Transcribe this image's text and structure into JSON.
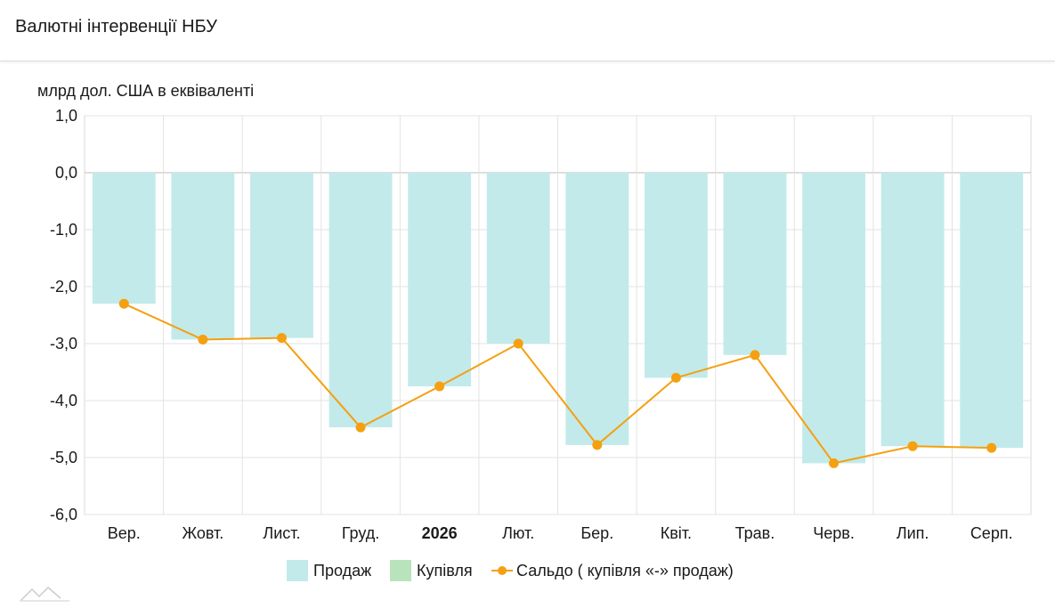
{
  "header": {
    "title": "Валютні інтервенції НБУ"
  },
  "chart_data": {
    "type": "bar",
    "unit_label": "млрд дол. США в еквіваленті",
    "categories": [
      "Вер.",
      "Жовт.",
      "Лист.",
      "Груд.",
      "2026",
      "Лют.",
      "Бер.",
      "Квіт.",
      "Трав.",
      "Черв.",
      "Лип.",
      "Серп."
    ],
    "bold_categories": [
      "2026"
    ],
    "ylim": [
      -6.0,
      1.0
    ],
    "yticks": [
      "1,0",
      "0,0",
      "-1,0",
      "-2,0",
      "-3,0",
      "-4,0",
      "-5,0",
      "-6,0"
    ],
    "ytick_values": [
      1,
      0,
      -1,
      -2,
      -3,
      -4,
      -5,
      -6
    ],
    "grid": true,
    "legend_position": "bottom",
    "series": [
      {
        "name": "Продаж",
        "kind": "bar",
        "color": "#c2eaea",
        "values": [
          -2.3,
          -2.93,
          -2.9,
          -4.47,
          -3.75,
          -3.0,
          -4.78,
          -3.6,
          -3.2,
          -5.1,
          -4.8,
          -4.83
        ]
      },
      {
        "name": "Купівля",
        "kind": "bar",
        "color": "#b9e3bd",
        "values": [
          0,
          0,
          0,
          0,
          0,
          0,
          0,
          0,
          0,
          0,
          0,
          0
        ]
      },
      {
        "name": "Сальдо ( купівля «-» продаж)",
        "kind": "line",
        "color": "#f5a010",
        "values": [
          -2.3,
          -2.93,
          -2.9,
          -4.47,
          -3.75,
          -3.0,
          -4.78,
          -3.6,
          -3.2,
          -5.1,
          -4.8,
          -4.83
        ]
      }
    ]
  }
}
